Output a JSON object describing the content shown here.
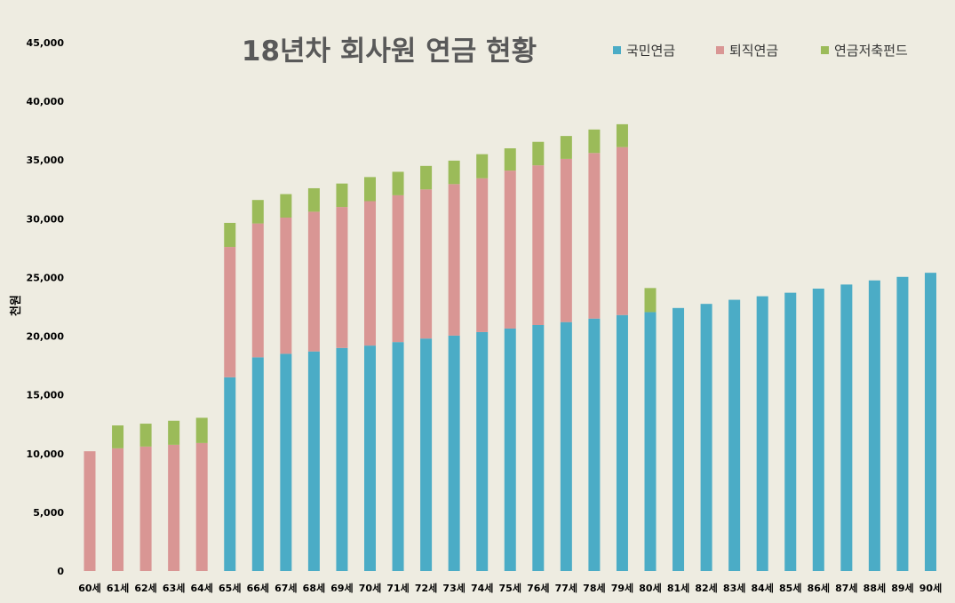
{
  "chart_data": {
    "type": "bar",
    "stacked": true,
    "title": "18년차 회사원 연금 현황",
    "xlabel": "",
    "ylabel": "천원",
    "ylim": [
      0,
      45000
    ],
    "yticks": [
      0,
      5000,
      10000,
      15000,
      20000,
      25000,
      30000,
      35000,
      40000,
      45000
    ],
    "ytick_labels": [
      "0",
      "5,000",
      "10,000",
      "15,000",
      "20,000",
      "25,000",
      "30,000",
      "35,000",
      "40,000",
      "45,000"
    ],
    "grid": false,
    "legend_position": "top-right",
    "categories": [
      "60세",
      "61세",
      "62세",
      "63세",
      "64세",
      "65세",
      "66세",
      "67세",
      "68세",
      "69세",
      "70세",
      "71세",
      "72세",
      "73세",
      "74세",
      "75세",
      "76세",
      "77세",
      "78세",
      "79세",
      "80세",
      "81세",
      "82세",
      "83세",
      "84세",
      "85세",
      "86세",
      "87세",
      "88세",
      "89세",
      "90세"
    ],
    "series": [
      {
        "name": "국민연금",
        "color": "#4bacc6",
        "values": [
          0,
          0,
          0,
          0,
          0,
          16500,
          18200,
          18500,
          18700,
          19000,
          19200,
          19500,
          19800,
          20050,
          20350,
          20650,
          20950,
          21200,
          21500,
          21800,
          22050,
          22400,
          22750,
          23100,
          23400,
          23700,
          24050,
          24400,
          24750,
          25050,
          25400
        ]
      },
      {
        "name": "퇴직연금",
        "color": "#d99694",
        "values": [
          10200,
          10450,
          10600,
          10750,
          10900,
          11100,
          11400,
          11600,
          11900,
          12000,
          12300,
          12500,
          12700,
          12900,
          13100,
          13450,
          13600,
          13900,
          14100,
          14300,
          0,
          0,
          0,
          0,
          0,
          0,
          0,
          0,
          0,
          0,
          0
        ]
      },
      {
        "name": "연금저축펀드",
        "color": "#9bbb59",
        "values": [
          0,
          1950,
          1950,
          2050,
          2150,
          2050,
          2000,
          2000,
          2000,
          2000,
          2050,
          2000,
          2000,
          2000,
          2050,
          1900,
          2000,
          1950,
          2000,
          1950,
          2050,
          0,
          0,
          0,
          0,
          0,
          0,
          0,
          0,
          0,
          0
        ]
      }
    ]
  }
}
